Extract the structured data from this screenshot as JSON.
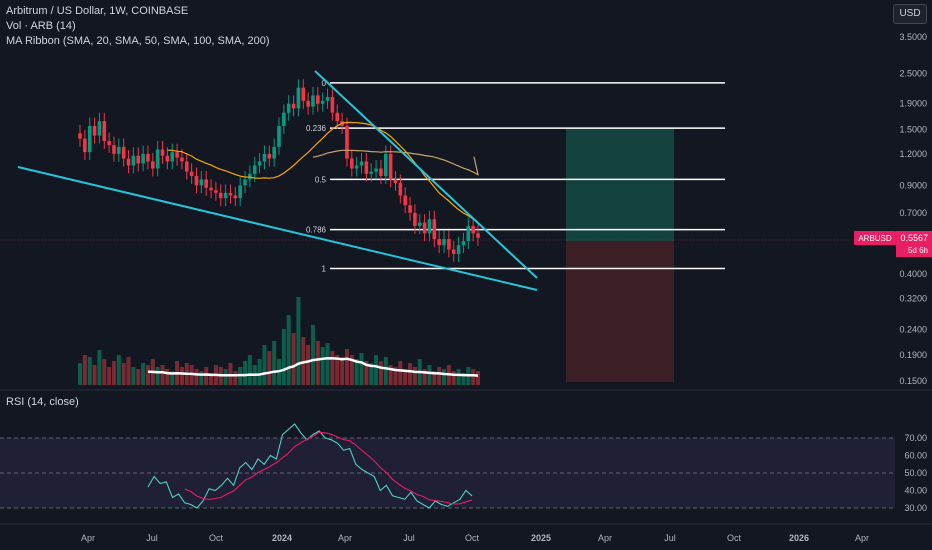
{
  "header": {
    "symbol_line": "Arbitrum / US Dollar, 1W, COINBASE",
    "volume_line": "Vol · ARB (14)",
    "ma_line": "MA Ribbon (SMA, 20, SMA, 50, SMA, 100, SMA, 200)",
    "currency_button": "USD",
    "rsi_line": "RSI (14, close)"
  },
  "price_tag": {
    "ticker": "ARBUSD",
    "price": "0.5567",
    "countdown": "5d 6h",
    "color": "#e91e63"
  },
  "colors": {
    "up": "#089981",
    "down": "#f23645",
    "trendline": "#26c6da",
    "fib": "#ffffff",
    "ma_orange": "#f7a600",
    "rsi": "#4dd0c7",
    "rsi_ma": "#e91e63"
  },
  "chart_data": {
    "type": "candlestick",
    "x_labels": [
      "Apr",
      "Jul",
      "Oct",
      "2024",
      "Apr",
      "Jul",
      "Oct",
      "2025",
      "Apr",
      "Jul",
      "Oct",
      "2026",
      "Apr"
    ],
    "y_ticks": [
      "3.5000",
      "2.5000",
      "1.9000",
      "1.5000",
      "1.2000",
      "0.9000",
      "0.7000",
      "0.5000",
      "0.4000",
      "0.3200",
      "0.2400",
      "0.1900",
      "0.1500"
    ],
    "y_scale": "log",
    "fib_levels": [
      {
        "label": "0",
        "price": 2.3
      },
      {
        "label": "0.236",
        "price": 1.52
      },
      {
        "label": "0.5",
        "price": 0.95
      },
      {
        "label": "0.786",
        "price": 0.6
      },
      {
        "label": "1",
        "price": 0.42
      }
    ],
    "close_prices": [
      1.38,
      1.22,
      1.55,
      1.42,
      1.62,
      1.35,
      1.3,
      1.2,
      1.28,
      1.15,
      1.08,
      1.18,
      1.1,
      1.2,
      1.12,
      1.05,
      1.25,
      1.18,
      1.12,
      1.22,
      1.16,
      1.12,
      1.02,
      0.98,
      0.9,
      0.95,
      0.88,
      0.86,
      0.84,
      0.8,
      0.84,
      0.82,
      0.8,
      0.9,
      0.95,
      1.0,
      1.08,
      1.12,
      1.2,
      1.15,
      1.28,
      1.55,
      1.75,
      1.9,
      1.82,
      2.2,
      1.95,
      1.85,
      2.05,
      1.9,
      1.95,
      2.02,
      1.75,
      1.62,
      1.55,
      1.15,
      1.05,
      1.08,
      1.12,
      1.0,
      1.02,
      1.05,
      0.98,
      1.2,
      0.95,
      0.92,
      0.82,
      0.75,
      0.7,
      0.62,
      0.64,
      0.58,
      0.66,
      0.55,
      0.52,
      0.55,
      0.5,
      0.48,
      0.52,
      0.54,
      0.62,
      0.58,
      0.5567
    ],
    "rsi_values": [
      42,
      48,
      44,
      45,
      36,
      38,
      33,
      32,
      30,
      34,
      41,
      40,
      43,
      47,
      43,
      53,
      56,
      52,
      58,
      55,
      60,
      58,
      72,
      75,
      78,
      73,
      69,
      72,
      74,
      70,
      69,
      67,
      63,
      64,
      55,
      52,
      50,
      48,
      40,
      43,
      37,
      36,
      35,
      39,
      34,
      32,
      30,
      34,
      32,
      31,
      33,
      35,
      40,
      37
    ],
    "rsi_ticks": [
      "70.00",
      "60.00",
      "50.00",
      "40.00",
      "30.00"
    ],
    "rsi_band": [
      30,
      70
    ]
  }
}
